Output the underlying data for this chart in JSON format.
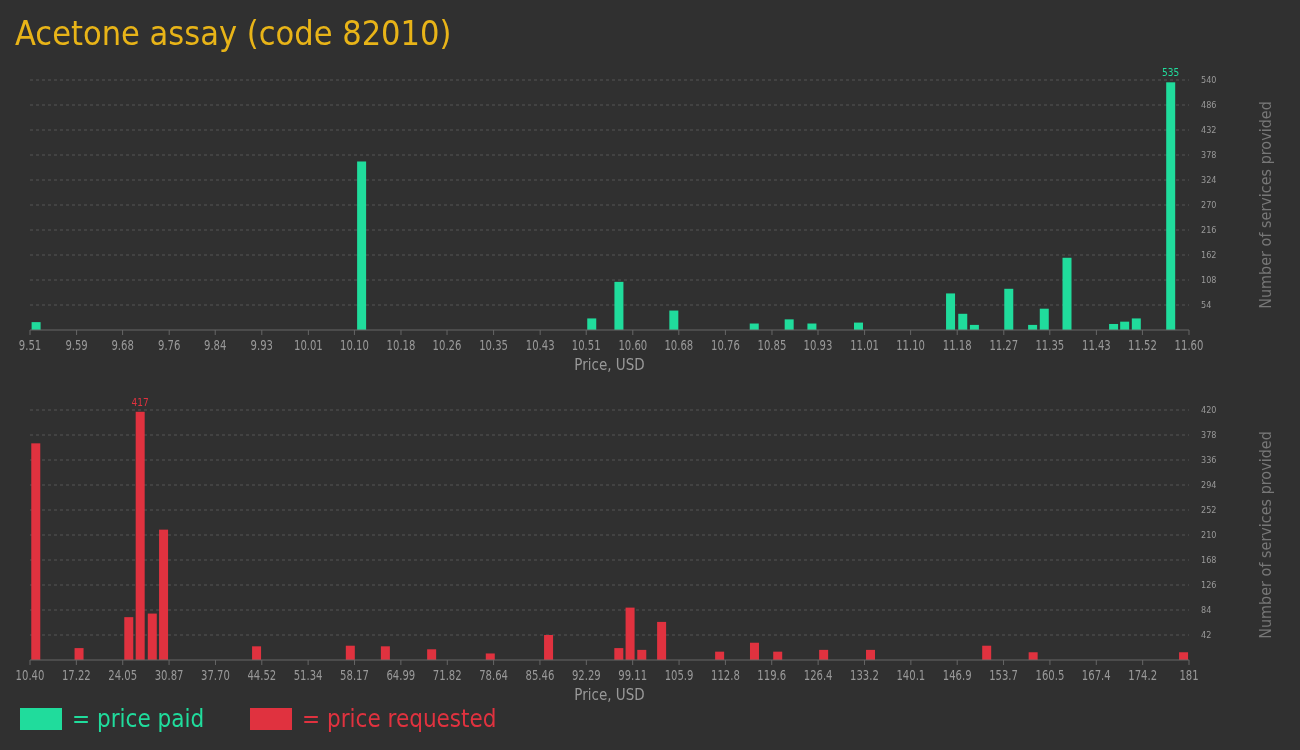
{
  "chart_data": [
    {
      "type": "bar",
      "title": "Acetone assay (code 82010)",
      "xlabel": "Price, USD",
      "ylabel": "Number of services provided",
      "x": [
        9.521,
        10.108,
        10.523,
        10.572,
        10.671,
        10.816,
        10.879,
        10.92,
        11.004,
        11.17,
        11.192,
        11.213,
        11.275,
        11.318,
        11.339,
        11.38,
        11.464,
        11.484,
        11.505,
        11.567
      ],
      "series": [
        {
          "name": "= price paid",
          "color": "#20dc9c",
          "values": [
            17,
            364,
            25,
            104,
            42,
            14,
            23,
            14,
            16,
            79,
            35,
            11,
            89,
            11,
            46,
            156,
            13,
            18,
            25,
            535
          ],
          "value_labels": [
            null,
            null,
            null,
            null,
            null,
            null,
            null,
            null,
            null,
            null,
            null,
            null,
            null,
            null,
            null,
            null,
            null,
            null,
            null,
            "535"
          ]
        }
      ],
      "xlim": [
        9.51,
        11.6
      ],
      "xticks": [
        {
          "value": 9.51,
          "label": "9.51"
        },
        {
          "value": 9.594,
          "label": "9.59"
        },
        {
          "value": 9.677,
          "label": "9.68"
        },
        {
          "value": 9.761,
          "label": "9.76"
        },
        {
          "value": 9.844,
          "label": "9.84"
        },
        {
          "value": 9.928,
          "label": "9.93"
        },
        {
          "value": 10.012,
          "label": "10.01"
        },
        {
          "value": 10.095,
          "label": "10.10"
        },
        {
          "value": 10.179,
          "label": "10.18"
        },
        {
          "value": 10.262,
          "label": "10.26"
        },
        {
          "value": 10.346,
          "label": "10.35"
        },
        {
          "value": 10.43,
          "label": "10.43"
        },
        {
          "value": 10.513,
          "label": "10.51"
        },
        {
          "value": 10.597,
          "label": "10.60"
        },
        {
          "value": 10.68,
          "label": "10.68"
        },
        {
          "value": 10.764,
          "label": "10.76"
        },
        {
          "value": 10.848,
          "label": "10.85"
        },
        {
          "value": 10.931,
          "label": "10.93"
        },
        {
          "value": 11.015,
          "label": "11.01"
        },
        {
          "value": 11.098,
          "label": "11.10"
        },
        {
          "value": 11.182,
          "label": "11.18"
        },
        {
          "value": 11.266,
          "label": "11.27"
        },
        {
          "value": 11.349,
          "label": "11.35"
        },
        {
          "value": 11.433,
          "label": "11.43"
        },
        {
          "value": 11.516,
          "label": "11.52"
        },
        {
          "value": 11.6,
          "label": "11.60"
        }
      ],
      "ylim": [
        0,
        540
      ],
      "yticks": [
        54,
        108,
        162,
        216,
        270,
        324,
        378,
        432,
        486,
        540
      ],
      "grid": "y",
      "legend": "bottom"
    },
    {
      "type": "bar",
      "xlabel": "Price, USD",
      "ylabel": "Number of services provided",
      "x": [
        11.25,
        17.62,
        24.94,
        26.62,
        28.4,
        30.06,
        43.75,
        57.55,
        62.71,
        69.52,
        78.15,
        86.73,
        97.07,
        98.73,
        100.45,
        103.37,
        111.91,
        117.04,
        120.46,
        127.22,
        134.12,
        151.22,
        158.06,
        180.2
      ],
      "series": [
        {
          "name": "= price requested",
          "color": "#e0323f",
          "values": [
            364,
            20,
            72,
            417,
            78,
            219,
            23,
            24,
            23,
            18,
            11,
            42,
            20,
            88,
            17,
            64,
            14,
            29,
            14,
            17,
            17,
            24,
            13,
            13
          ],
          "value_labels": [
            null,
            null,
            null,
            "417",
            null,
            null,
            null,
            null,
            null,
            null,
            null,
            null,
            null,
            null,
            null,
            null,
            null,
            null,
            null,
            null,
            null,
            null,
            null,
            null
          ]
        }
      ],
      "xlim": [
        10.4,
        181
      ],
      "xticks": [
        {
          "value": 10.4,
          "label": "10.40"
        },
        {
          "value": 17.22,
          "label": "17.22"
        },
        {
          "value": 24.05,
          "label": "24.05"
        },
        30.87,
        {
          "value": 37.7,
          "label": "37.70"
        },
        44.52,
        51.34,
        58.17,
        64.99,
        71.82,
        78.64,
        85.46,
        92.29,
        99.11,
        {
          "value": 105.94,
          "label": "105.9"
        },
        {
          "value": 112.76,
          "label": "112.8"
        },
        {
          "value": 119.58,
          "label": "119.6"
        },
        {
          "value": 126.41,
          "label": "126.4"
        },
        {
          "value": 133.23,
          "label": "133.2"
        },
        {
          "value": 140.06,
          "label": "140.1"
        },
        {
          "value": 146.88,
          "label": "146.9"
        },
        {
          "value": 153.7,
          "label": "153.7"
        },
        {
          "value": 160.53,
          "label": "160.5"
        },
        {
          "value": 167.35,
          "label": "167.4"
        },
        {
          "value": 174.18,
          "label": "174.2"
        },
        181
      ],
      "ylim": [
        0,
        420
      ],
      "yticks": [
        42,
        84,
        126,
        168,
        210,
        252,
        294,
        336,
        378,
        420
      ],
      "grid": "y",
      "legend": "bottom"
    }
  ]
}
